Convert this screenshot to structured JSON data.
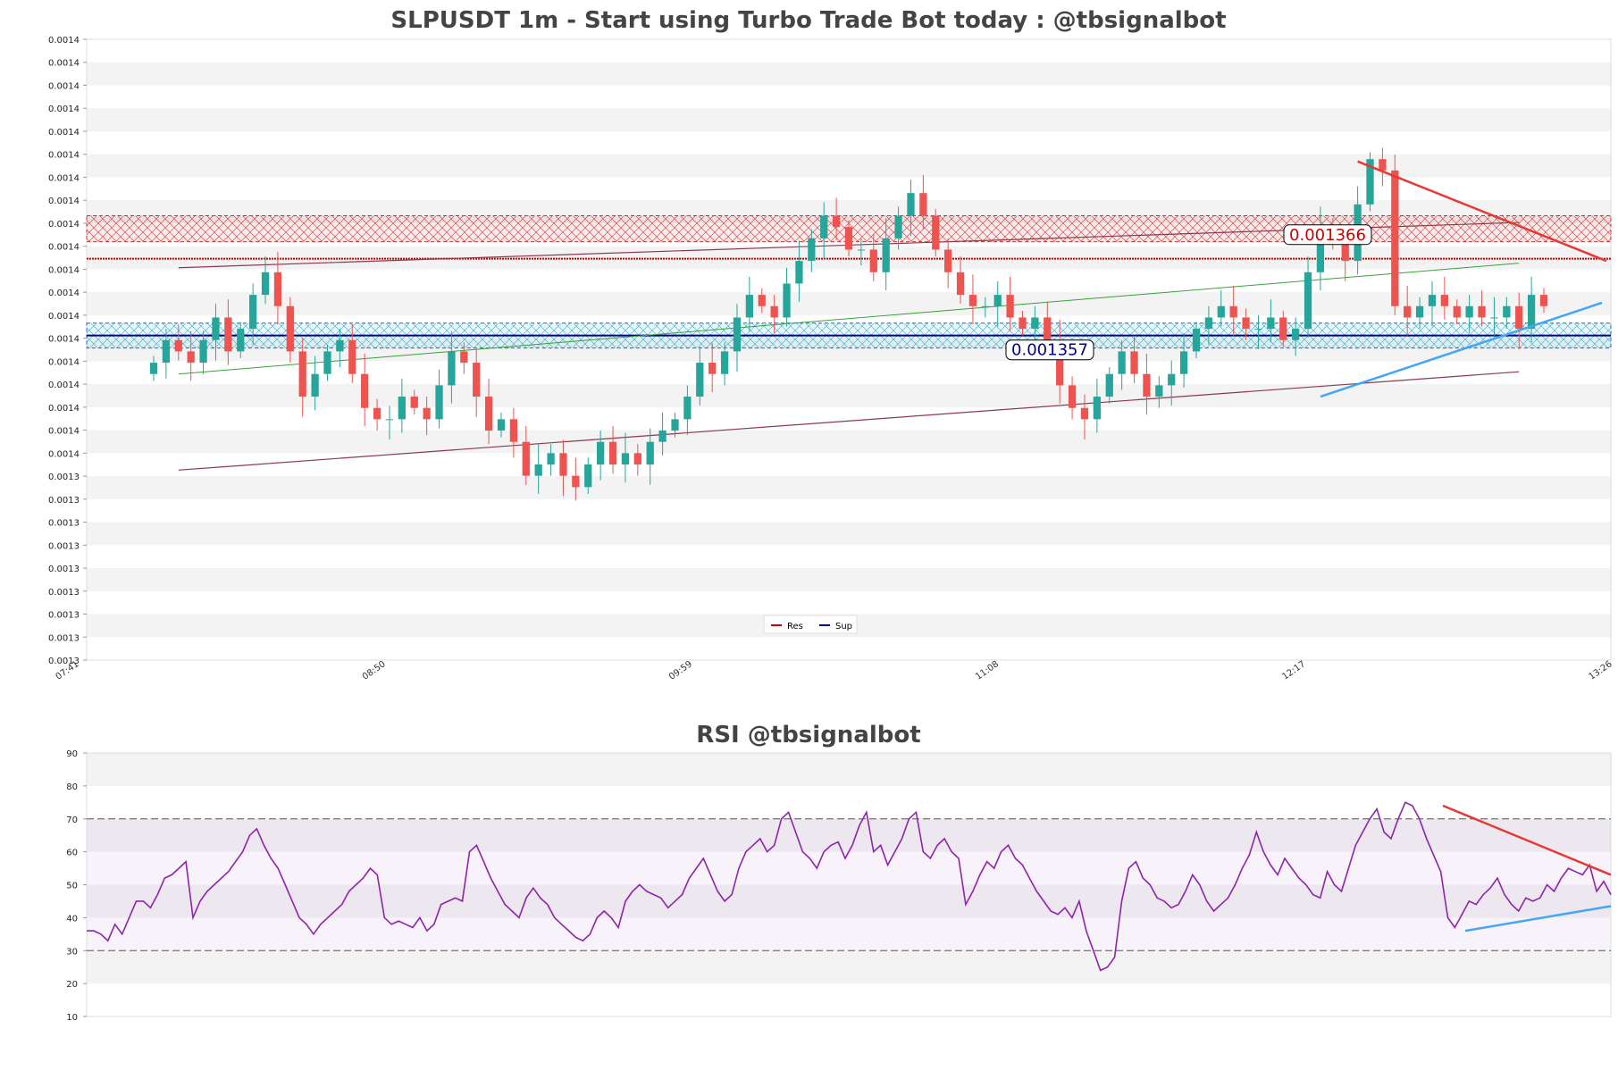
{
  "chart_data": [
    {
      "type": "candlestick",
      "title": "SLPUSDT 1m - Start using Turbo Trade Bot today : @tbsignalbot",
      "y_ticks": [
        "0.0014",
        "0.0014",
        "0.0014",
        "0.0014",
        "0.0014",
        "0.0014",
        "0.0014",
        "0.0014",
        "0.0014",
        "0.0014",
        "0.0014",
        "0.0014",
        "0.0014",
        "0.0014",
        "0.0014",
        "0.0014",
        "0.0014",
        "0.0014",
        "0.0014",
        "0.0013",
        "0.0013",
        "0.0013",
        "0.0013",
        "0.0013",
        "0.0013",
        "0.0013",
        "0.0013",
        "0.0013"
      ],
      "x_ticks": [
        "07:41",
        "08:50",
        "09:59",
        "11:08",
        "12:17",
        "13:26"
      ],
      "ylim": [
        0.0013287,
        0.0013836
      ],
      "resistance": {
        "value": 0.001366,
        "label": "0.001366",
        "zone": [
          0.0013657,
          0.001368
        ]
      },
      "support": {
        "value": 0.001357,
        "label": "0.001357",
        "zone": [
          0.0013563,
          0.0013585
        ]
      },
      "channel_upper": [
        [
          0.0013634,
          0.0013674
        ]
      ],
      "channel_lower": [
        [
          0.0013455,
          0.0013542
        ]
      ],
      "legend": [
        {
          "name": "Res",
          "color": "#cc0000"
        },
        {
          "name": "Sup",
          "color": "#00008b"
        }
      ],
      "closes": [
        0.001355,
        0.001357,
        0.001356,
        0.001355,
        0.001357,
        0.001359,
        0.001356,
        0.001358,
        0.001361,
        0.001363,
        0.00136,
        0.001356,
        0.001352,
        0.001354,
        0.001356,
        0.001357,
        0.001354,
        0.001351,
        0.00135,
        0.00135,
        0.001352,
        0.001351,
        0.00135,
        0.001353,
        0.001356,
        0.001355,
        0.001352,
        0.001349,
        0.00135,
        0.001348,
        0.001345,
        0.001346,
        0.001347,
        0.001345,
        0.001344,
        0.001346,
        0.001348,
        0.001346,
        0.001347,
        0.001346,
        0.001348,
        0.001349,
        0.00135,
        0.001352,
        0.001355,
        0.001354,
        0.001356,
        0.001359,
        0.001361,
        0.00136,
        0.001359,
        0.001362,
        0.001364,
        0.001366,
        0.001368,
        0.001367,
        0.001365,
        0.001365,
        0.001363,
        0.001366,
        0.001368,
        0.00137,
        0.001368,
        0.001365,
        0.001363,
        0.001361,
        0.00136,
        0.00136,
        0.001361,
        0.001359,
        0.001358,
        0.001359,
        0.001357,
        0.001353,
        0.001351,
        0.00135,
        0.001352,
        0.001354,
        0.001356,
        0.001354,
        0.001352,
        0.001353,
        0.001354,
        0.001356,
        0.001358,
        0.001359,
        0.00136,
        0.001359,
        0.001358,
        0.001358,
        0.001359,
        0.001357,
        0.001358,
        0.001363,
        0.001367,
        0.001366,
        0.001364,
        0.001369,
        0.001373,
        0.001372,
        0.00136,
        0.001359,
        0.00136,
        0.001361,
        0.00136,
        0.001359,
        0.00136,
        0.001359,
        0.001359,
        0.00136,
        0.001358,
        0.001361,
        0.00136
      ]
    },
    {
      "type": "line",
      "title": "RSI @tbsignalbot",
      "y_ticks": [
        "90",
        "80",
        "70",
        "60",
        "50",
        "40",
        "30",
        "20",
        "10"
      ],
      "ylim": [
        10,
        90
      ],
      "overbought": 70,
      "oversold": 30,
      "values": [
        36,
        36,
        35,
        33,
        38,
        35,
        40,
        45,
        45,
        43,
        47,
        52,
        53,
        55,
        57,
        40,
        45,
        48,
        50,
        52,
        54,
        57,
        60,
        65,
        67,
        62,
        58,
        55,
        50,
        45,
        40,
        38,
        35,
        38,
        40,
        42,
        44,
        48,
        50,
        52,
        55,
        53,
        40,
        38,
        39,
        38,
        37,
        40,
        36,
        38,
        44,
        45,
        46,
        45,
        60,
        62,
        57,
        52,
        48,
        44,
        42,
        40,
        46,
        49,
        46,
        44,
        40,
        38,
        36,
        34,
        33,
        35,
        40,
        42,
        40,
        37,
        45,
        48,
        50,
        48,
        47,
        46,
        43,
        45,
        47,
        52,
        55,
        58,
        53,
        48,
        45,
        47,
        55,
        60,
        62,
        64,
        60,
        62,
        70,
        72,
        66,
        60,
        58,
        55,
        60,
        62,
        63,
        58,
        62,
        68,
        72,
        60,
        62,
        56,
        60,
        64,
        70,
        72,
        60,
        58,
        62,
        64,
        60,
        58,
        44,
        48,
        53,
        57,
        55,
        60,
        62,
        58,
        56,
        52,
        48,
        45,
        42,
        41,
        43,
        40,
        45,
        36,
        30,
        24,
        25,
        28,
        45,
        55,
        57,
        52,
        50,
        46,
        45,
        43,
        44,
        48,
        53,
        50,
        45,
        42,
        44,
        46,
        50,
        55,
        59,
        66,
        60,
        56,
        53,
        58,
        55,
        52,
        50,
        47,
        46,
        54,
        50,
        48,
        55,
        62,
        66,
        70,
        73,
        66,
        64,
        70,
        75,
        74,
        70,
        64,
        59,
        54,
        40,
        37,
        41,
        45,
        44,
        47,
        49,
        52,
        47,
        44,
        42,
        46,
        45,
        46,
        50,
        48,
        52,
        55,
        54,
        53,
        56,
        48,
        51,
        47
      ]
    }
  ]
}
